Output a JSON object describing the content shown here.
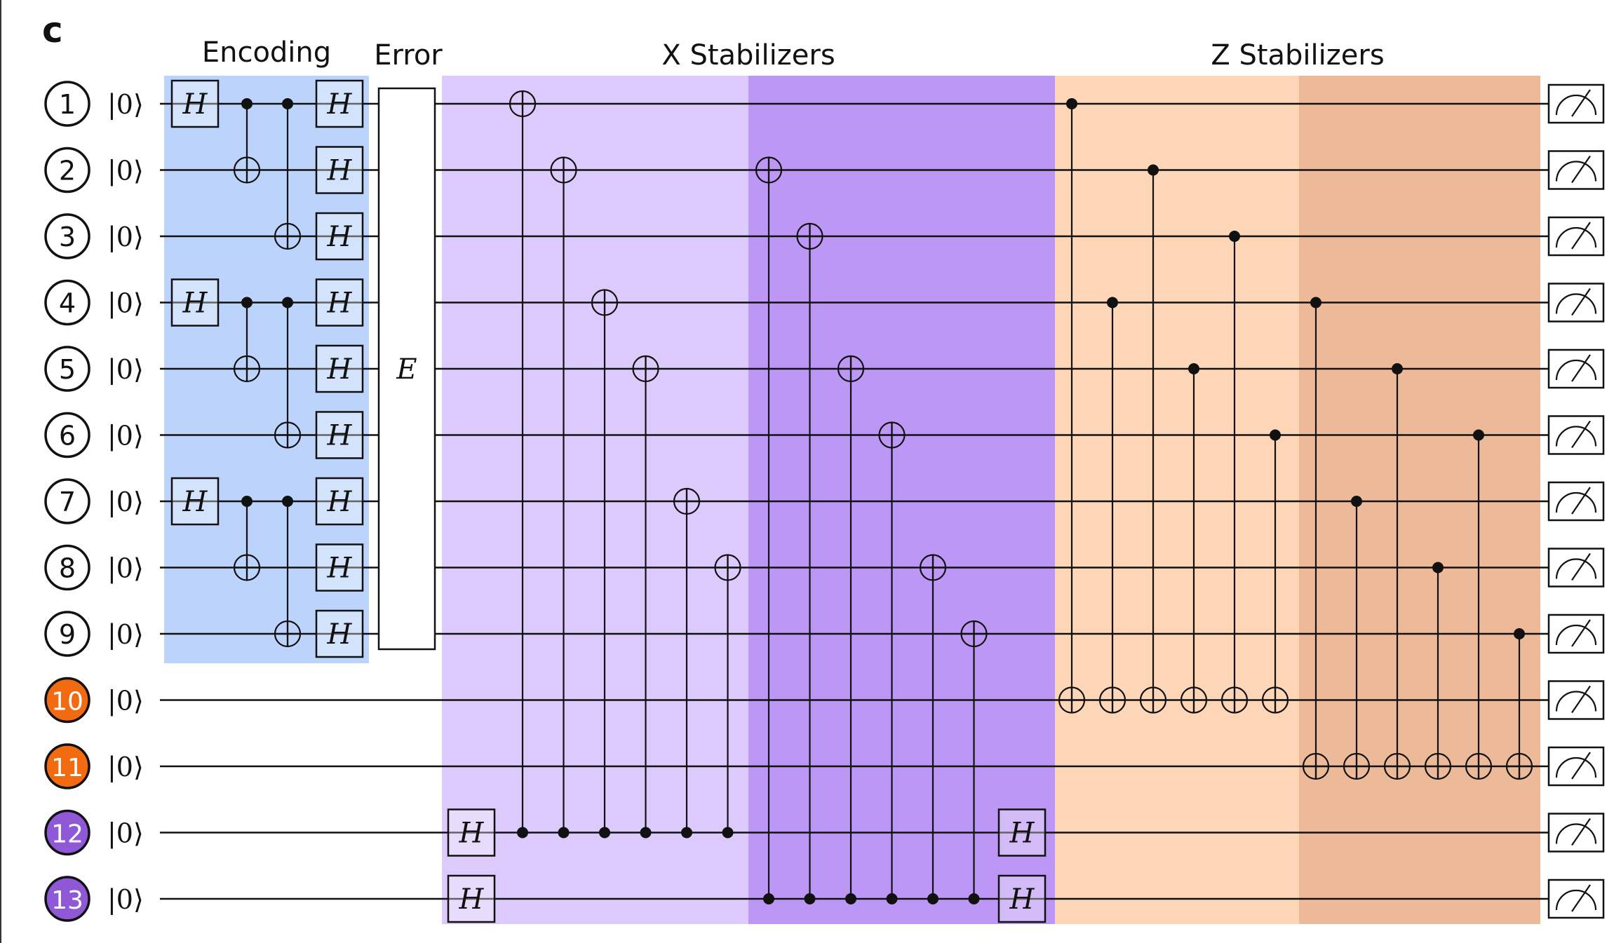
{
  "panel_label": "c",
  "sections": {
    "encoding": "Encoding",
    "error": "Error",
    "x_stabilizers": "X Stabilizers",
    "z_stabilizers": "Z Stabilizers"
  },
  "colors": {
    "encoding_bg": "#bcd4fb",
    "x_light_bg": "#dccafc",
    "x_dark_bg": "#bc97f5",
    "z_light_bg": "#fdd5b7",
    "z_dark_bg": "#ecba99",
    "data_qubit": "#ffffff",
    "z_ancilla": "#f26b10",
    "x_ancilla": "#8e58d6",
    "wire": "#111111"
  },
  "qubits": [
    {
      "label": "1",
      "init": "|0⟩",
      "type": "data"
    },
    {
      "label": "2",
      "init": "|0⟩",
      "type": "data"
    },
    {
      "label": "3",
      "init": "|0⟩",
      "type": "data"
    },
    {
      "label": "4",
      "init": "|0⟩",
      "type": "data"
    },
    {
      "label": "5",
      "init": "|0⟩",
      "type": "data"
    },
    {
      "label": "6",
      "init": "|0⟩",
      "type": "data"
    },
    {
      "label": "7",
      "init": "|0⟩",
      "type": "data"
    },
    {
      "label": "8",
      "init": "|0⟩",
      "type": "data"
    },
    {
      "label": "9",
      "init": "|0⟩",
      "type": "data"
    },
    {
      "label": "10",
      "init": "|0⟩",
      "type": "z-ancilla"
    },
    {
      "label": "11",
      "init": "|0⟩",
      "type": "z-ancilla"
    },
    {
      "label": "12",
      "init": "|0⟩",
      "type": "x-ancilla"
    },
    {
      "label": "13",
      "init": "|0⟩",
      "type": "x-ancilla"
    }
  ],
  "gate_labels": {
    "hadamard": "H",
    "error": "E"
  },
  "encoding": {
    "pre_h": [
      1,
      4,
      7
    ],
    "cnots": [
      {
        "col": 0,
        "control": 1,
        "target": 2
      },
      {
        "col": 1,
        "control": 1,
        "target": 3
      },
      {
        "col": 0,
        "control": 4,
        "target": 5
      },
      {
        "col": 1,
        "control": 4,
        "target": 6
      },
      {
        "col": 0,
        "control": 7,
        "target": 8
      },
      {
        "col": 1,
        "control": 7,
        "target": 9
      }
    ],
    "post_h": [
      1,
      2,
      3,
      4,
      5,
      6,
      7,
      8,
      9
    ]
  },
  "x_stabilizers": {
    "ancilla_h": [
      12,
      13
    ],
    "cnots": [
      {
        "control": 12,
        "target": 1
      },
      {
        "control": 12,
        "target": 2
      },
      {
        "control": 12,
        "target": 4
      },
      {
        "control": 12,
        "target": 5
      },
      {
        "control": 12,
        "target": 7
      },
      {
        "control": 12,
        "target": 8
      },
      {
        "control": 13,
        "target": 2
      },
      {
        "control": 13,
        "target": 3
      },
      {
        "control": 13,
        "target": 5
      },
      {
        "control": 13,
        "target": 6
      },
      {
        "control": 13,
        "target": 8
      },
      {
        "control": 13,
        "target": 9
      }
    ]
  },
  "z_stabilizers": {
    "cnots": [
      {
        "control": 1,
        "target": 10
      },
      {
        "control": 4,
        "target": 10
      },
      {
        "control": 2,
        "target": 10
      },
      {
        "control": 5,
        "target": 10
      },
      {
        "control": 3,
        "target": 10
      },
      {
        "control": 6,
        "target": 10
      },
      {
        "control": 4,
        "target": 11
      },
      {
        "control": 7,
        "target": 11
      },
      {
        "control": 5,
        "target": 11
      },
      {
        "control": 8,
        "target": 11
      },
      {
        "control": 6,
        "target": 11
      },
      {
        "control": 9,
        "target": 11
      }
    ]
  },
  "measurement": "meter-icon"
}
